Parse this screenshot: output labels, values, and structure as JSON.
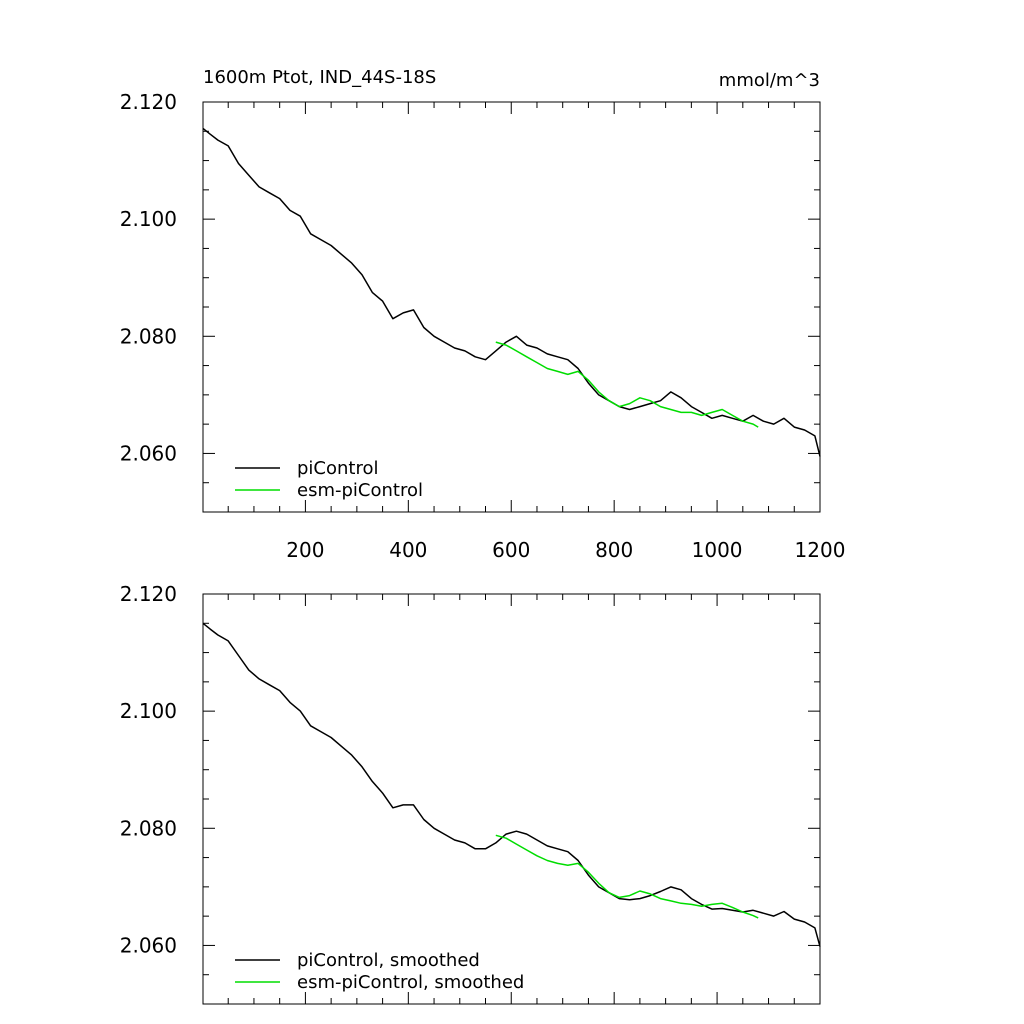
{
  "colors": {
    "picontrol": "#000000",
    "esm_picontrol": "#00dd00",
    "axis": "#000000",
    "background": "#ffffff"
  },
  "chart_data": [
    {
      "type": "line",
      "panel": "top",
      "title_left": "1600m Ptot, IND_44S-18S",
      "title_right": "mmol/m^3",
      "xlabel": "",
      "ylabel": "",
      "xlim": [
        1,
        1200
      ],
      "ylim": [
        2.05,
        2.12
      ],
      "yticks": [
        2.06,
        2.08,
        2.1,
        2.12
      ],
      "ytick_labels": [
        "2.060",
        "2.080",
        "2.100",
        "2.120"
      ],
      "xticks": [
        200,
        400,
        600,
        800,
        1000,
        1200
      ],
      "xtick_labels": [
        "200",
        "400",
        "600",
        "800",
        "1000",
        "1200"
      ],
      "legend_position": "bottom-left",
      "series": [
        {
          "name": "piControl",
          "color_key": "picontrol",
          "x": [
            1,
            15,
            30,
            50,
            70,
            90,
            110,
            130,
            150,
            170,
            190,
            210,
            230,
            250,
            270,
            290,
            310,
            330,
            350,
            370,
            390,
            410,
            430,
            450,
            470,
            490,
            510,
            530,
            550,
            570,
            590,
            610,
            630,
            650,
            670,
            690,
            710,
            730,
            750,
            770,
            790,
            810,
            830,
            850,
            870,
            890,
            910,
            930,
            950,
            970,
            990,
            1010,
            1030,
            1050,
            1070,
            1090,
            1110,
            1130,
            1150,
            1170,
            1190,
            1200
          ],
          "y": [
            2.1155,
            2.1145,
            2.1135,
            2.1125,
            2.1095,
            2.1075,
            2.1055,
            2.1045,
            2.1035,
            2.1015,
            2.1005,
            2.0975,
            2.0965,
            2.0955,
            2.094,
            2.0925,
            2.0905,
            2.0875,
            2.086,
            2.083,
            2.084,
            2.0845,
            2.0815,
            2.08,
            2.079,
            2.078,
            2.0775,
            2.0765,
            2.076,
            2.0775,
            2.079,
            2.08,
            2.0785,
            2.078,
            2.077,
            2.0765,
            2.076,
            2.0745,
            2.072,
            2.07,
            2.069,
            2.068,
            2.0675,
            2.068,
            2.0685,
            2.069,
            2.0705,
            2.0695,
            2.068,
            2.067,
            2.066,
            2.0665,
            2.066,
            2.0655,
            2.0665,
            2.0655,
            2.065,
            2.066,
            2.0645,
            2.064,
            2.063,
            2.0595
          ]
        },
        {
          "name": "esm-piControl",
          "color_key": "esm_picontrol",
          "x": [
            570,
            590,
            610,
            630,
            650,
            670,
            690,
            710,
            730,
            750,
            770,
            790,
            810,
            830,
            850,
            870,
            890,
            910,
            930,
            950,
            970,
            990,
            1010,
            1030,
            1050,
            1070,
            1080
          ],
          "y": [
            2.079,
            2.0785,
            2.0775,
            2.0765,
            2.0755,
            2.0745,
            2.074,
            2.0735,
            2.074,
            2.0725,
            2.0705,
            2.069,
            2.068,
            2.0685,
            2.0695,
            2.069,
            2.068,
            2.0675,
            2.067,
            2.067,
            2.0665,
            2.067,
            2.0675,
            2.0665,
            2.0655,
            2.065,
            2.0645
          ]
        }
      ]
    },
    {
      "type": "line",
      "panel": "bottom",
      "title_left": "",
      "title_right": "",
      "xlabel": "",
      "ylabel": "",
      "xlim": [
        1,
        1200
      ],
      "ylim": [
        2.05,
        2.12
      ],
      "yticks": [
        2.06,
        2.08,
        2.1,
        2.12
      ],
      "ytick_labels": [
        "2.060",
        "2.080",
        "2.100",
        "2.120"
      ],
      "xticks": [
        200,
        400,
        600,
        800,
        1000,
        1200
      ],
      "xtick_labels": [],
      "legend_position": "bottom-left",
      "series": [
        {
          "name": "piControl, smoothed",
          "color_key": "picontrol",
          "x": [
            1,
            15,
            30,
            50,
            70,
            90,
            110,
            130,
            150,
            170,
            190,
            210,
            230,
            250,
            270,
            290,
            310,
            330,
            350,
            370,
            390,
            410,
            430,
            450,
            470,
            490,
            510,
            530,
            550,
            570,
            590,
            610,
            630,
            650,
            670,
            690,
            710,
            730,
            750,
            770,
            790,
            810,
            830,
            850,
            870,
            890,
            910,
            930,
            950,
            970,
            990,
            1010,
            1030,
            1050,
            1070,
            1090,
            1110,
            1130,
            1150,
            1170,
            1190,
            1200
          ],
          "y": [
            2.115,
            2.114,
            2.113,
            2.112,
            2.1095,
            2.107,
            2.1055,
            2.1045,
            2.1035,
            2.1015,
            2.1,
            2.0975,
            2.0965,
            2.0955,
            2.094,
            2.0925,
            2.0905,
            2.088,
            2.086,
            2.0835,
            2.084,
            2.084,
            2.0815,
            2.08,
            2.079,
            2.078,
            2.0775,
            2.0765,
            2.0765,
            2.0775,
            2.079,
            2.0795,
            2.079,
            2.078,
            2.077,
            2.0765,
            2.076,
            2.0745,
            2.072,
            2.07,
            2.069,
            2.068,
            2.0678,
            2.068,
            2.0685,
            2.0692,
            2.07,
            2.0695,
            2.068,
            2.067,
            2.0662,
            2.0663,
            2.066,
            2.0657,
            2.066,
            2.0655,
            2.065,
            2.0658,
            2.0645,
            2.064,
            2.063,
            2.0598
          ]
        },
        {
          "name": "esm-piControl, smoothed",
          "color_key": "esm_picontrol",
          "x": [
            570,
            590,
            610,
            630,
            650,
            670,
            690,
            710,
            730,
            750,
            770,
            790,
            810,
            830,
            850,
            870,
            890,
            910,
            930,
            950,
            970,
            990,
            1010,
            1030,
            1050,
            1070,
            1080
          ],
          "y": [
            2.0788,
            2.0783,
            2.0773,
            2.0763,
            2.0753,
            2.0745,
            2.074,
            2.0737,
            2.074,
            2.0725,
            2.0706,
            2.069,
            2.0682,
            2.0685,
            2.0693,
            2.0688,
            2.068,
            2.0676,
            2.0672,
            2.067,
            2.0667,
            2.067,
            2.0672,
            2.0665,
            2.0657,
            2.0651,
            2.0647
          ]
        }
      ]
    }
  ]
}
